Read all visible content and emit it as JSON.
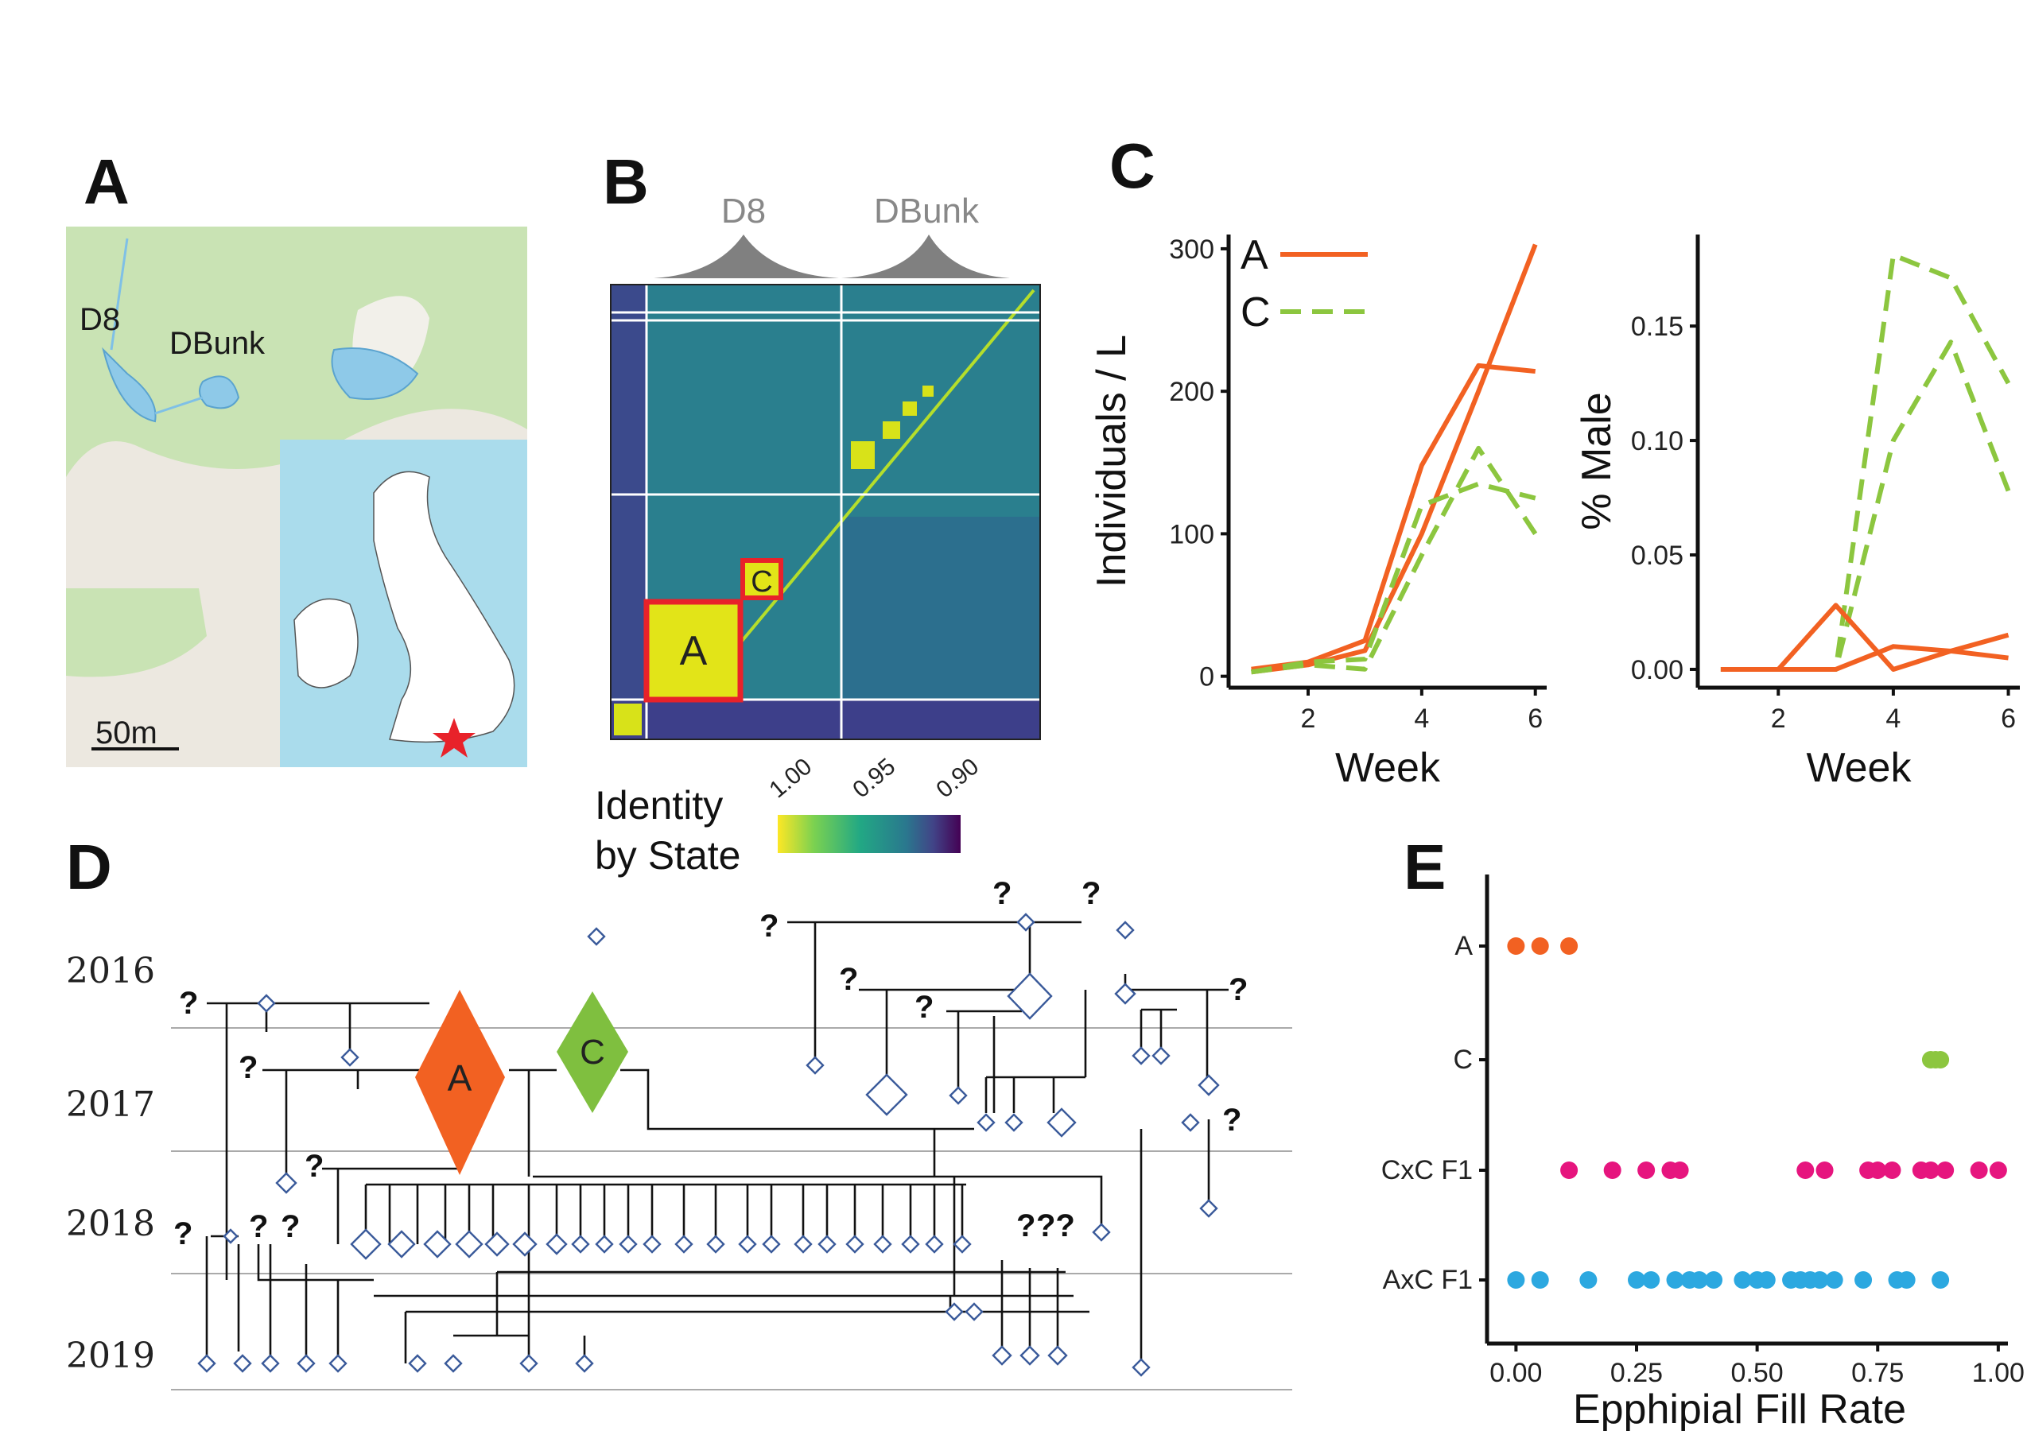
{
  "panels": {
    "a": {
      "label": "A",
      "map_labels": [
        "D8",
        "DBunk"
      ],
      "scale_label": "50m"
    },
    "b": {
      "label": "B",
      "groups": [
        "D8",
        "DBunk"
      ],
      "block_labels": [
        "C",
        "A"
      ],
      "colorbar": {
        "title_line1": "Identity",
        "title_line2": "by State",
        "ticks": [
          "1.00",
          "0.95",
          "0.90"
        ],
        "colors": [
          "#fde725",
          "#7ad151",
          "#22a884",
          "#2a788e",
          "#414487",
          "#440154"
        ]
      }
    },
    "c": {
      "label": "C"
    },
    "d": {
      "label": "D",
      "years": [
        "2016",
        "2017",
        "2018",
        "2019"
      ],
      "founders": [
        {
          "label": "A",
          "color": "#f26122"
        },
        {
          "label": "C",
          "color": "#7fbf3f"
        }
      ],
      "unknown": "?",
      "unknown_pair": "??"
    },
    "e": {
      "label": "E"
    }
  },
  "chart_data": [
    {
      "id": "c-left",
      "type": "line",
      "title": "",
      "xlabel": "Week",
      "ylabel": "Individuals / L",
      "xticks": [
        2,
        4,
        6
      ],
      "yticks": [
        0,
        100,
        200,
        300
      ],
      "xlim": [
        0.6,
        6.2
      ],
      "ylim": [
        -8,
        310
      ],
      "legend": {
        "position": "top-left",
        "entries": [
          {
            "label": "A",
            "color": "#f26122",
            "style": "solid"
          },
          {
            "label": "C",
            "color": "#8cc63f",
            "style": "dashed"
          }
        ]
      },
      "series": [
        {
          "group": "A",
          "color": "#f26122",
          "style": "solid",
          "x": [
            1,
            2,
            3,
            4,
            5,
            6
          ],
          "y": [
            5,
            10,
            25,
            148,
            218,
            214
          ]
        },
        {
          "group": "A",
          "color": "#f26122",
          "style": "solid",
          "x": [
            1,
            2,
            3,
            4,
            5,
            6
          ],
          "y": [
            3,
            8,
            18,
            100,
            200,
            303
          ]
        },
        {
          "group": "C",
          "color": "#8cc63f",
          "style": "dashed",
          "x": [
            1,
            2,
            3,
            4,
            5,
            6
          ],
          "y": [
            3,
            10,
            12,
            120,
            135,
            125
          ]
        },
        {
          "group": "C",
          "color": "#8cc63f",
          "style": "dashed",
          "x": [
            1,
            2,
            3,
            4,
            5,
            6
          ],
          "y": [
            3,
            8,
            5,
            85,
            160,
            100
          ]
        }
      ]
    },
    {
      "id": "c-right",
      "type": "line",
      "title": "",
      "xlabel": "Week",
      "ylabel": "% Male",
      "xticks": [
        2,
        4,
        6
      ],
      "yticks": [
        0.0,
        0.05,
        0.1,
        0.15
      ],
      "ytick_labels": [
        "0.00",
        "0.05",
        "0.10",
        "0.15"
      ],
      "xlim": [
        0.6,
        6.2
      ],
      "ylim": [
        -0.008,
        0.19
      ],
      "series": [
        {
          "group": "C",
          "color": "#8cc63f",
          "style": "dashed",
          "x": [
            1,
            2,
            3,
            4,
            5,
            6
          ],
          "y": [
            0,
            0,
            0,
            0.181,
            0.171,
            0.125
          ]
        },
        {
          "group": "C",
          "color": "#8cc63f",
          "style": "dashed",
          "x": [
            1,
            2,
            3,
            4,
            5,
            6
          ],
          "y": [
            0,
            0,
            0,
            0.1,
            0.143,
            0.078
          ]
        },
        {
          "group": "A",
          "color": "#f26122",
          "style": "solid",
          "x": [
            1,
            2,
            3,
            4,
            5,
            6
          ],
          "y": [
            0,
            0,
            0.028,
            0.0,
            0.008,
            0.015
          ]
        },
        {
          "group": "A",
          "color": "#f26122",
          "style": "solid",
          "x": [
            1,
            2,
            3,
            4,
            5,
            6
          ],
          "y": [
            0,
            0,
            0,
            0.01,
            0.008,
            0.005
          ]
        }
      ]
    },
    {
      "id": "e",
      "type": "scatter",
      "title": "",
      "xlabel": "Epphipial Fill Rate",
      "ylabel": "",
      "xticks": [
        0,
        0.25,
        0.5,
        0.75,
        1.0
      ],
      "xtick_labels": [
        "0.00",
        "0.25",
        "0.50",
        "0.75",
        "1.00"
      ],
      "xlim": [
        -0.06,
        1.02
      ],
      "categories": [
        "A",
        "C",
        "CxC F1",
        "AxC F1"
      ],
      "series": [
        {
          "name": "A",
          "color": "#f26122",
          "x": [
            0.0,
            0.05,
            0.11
          ]
        },
        {
          "name": "C",
          "color": "#8cc63f",
          "x": [
            0.86,
            0.87,
            0.88
          ]
        },
        {
          "name": "CxC F1",
          "color": "#e6157e",
          "x": [
            0.11,
            0.2,
            0.27,
            0.32,
            0.34,
            0.6,
            0.64,
            0.73,
            0.75,
            0.78,
            0.84,
            0.86,
            0.89,
            0.96,
            1.0
          ]
        },
        {
          "name": "AxC F1",
          "color": "#2ca8e0",
          "x": [
            0.0,
            0.05,
            0.15,
            0.25,
            0.28,
            0.33,
            0.36,
            0.38,
            0.41,
            0.47,
            0.5,
            0.52,
            0.57,
            0.59,
            0.61,
            0.63,
            0.66,
            0.72,
            0.79,
            0.81,
            0.88
          ]
        }
      ]
    }
  ]
}
